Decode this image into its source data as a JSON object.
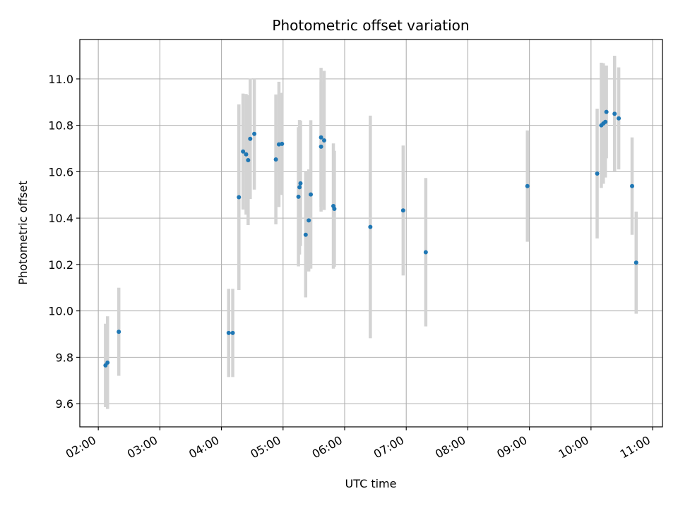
{
  "chart_data": {
    "type": "scatter",
    "title": "Photometric offset variation",
    "xlabel": "UTC time",
    "ylabel": "Photometric offset",
    "xlim": [
      1.7,
      11.16
    ],
    "ylim": [
      9.5,
      11.17
    ],
    "grid": true,
    "xticks": [
      {
        "value": 2,
        "label": "02:00"
      },
      {
        "value": 3,
        "label": "03:00"
      },
      {
        "value": 4,
        "label": "04:00"
      },
      {
        "value": 5,
        "label": "05:00"
      },
      {
        "value": 6,
        "label": "06:00"
      },
      {
        "value": 7,
        "label": "07:00"
      },
      {
        "value": 8,
        "label": "08:00"
      },
      {
        "value": 9,
        "label": "09:00"
      },
      {
        "value": 10,
        "label": "10:00"
      },
      {
        "value": 11,
        "label": "11:00"
      }
    ],
    "yticks": [
      {
        "value": 9.6,
        "label": "9.6"
      },
      {
        "value": 9.8,
        "label": "9.8"
      },
      {
        "value": 10.0,
        "label": "10.0"
      },
      {
        "value": 10.2,
        "label": "10.2"
      },
      {
        "value": 10.4,
        "label": "10.4"
      },
      {
        "value": 10.6,
        "label": "10.6"
      },
      {
        "value": 10.8,
        "label": "10.8"
      },
      {
        "value": 11.0,
        "label": "11.0"
      }
    ],
    "colors": {
      "marker": "#1f77b4",
      "errorbar": "#d3d3d3",
      "grid": "#b0b0b0"
    },
    "points": [
      {
        "x": 2.117,
        "y": 9.765,
        "err": 0.18
      },
      {
        "x": 2.15,
        "y": 9.777,
        "err": 0.2
      },
      {
        "x": 2.333,
        "y": 9.91,
        "err": 0.19
      },
      {
        "x": 4.117,
        "y": 9.905,
        "err": 0.19
      },
      {
        "x": 4.183,
        "y": 9.905,
        "err": 0.19
      },
      {
        "x": 4.283,
        "y": 10.49,
        "err": 0.4
      },
      {
        "x": 4.35,
        "y": 10.687,
        "err": 0.25
      },
      {
        "x": 4.4,
        "y": 10.675,
        "err": 0.26
      },
      {
        "x": 4.433,
        "y": 10.65,
        "err": 0.28
      },
      {
        "x": 4.467,
        "y": 10.742,
        "err": 0.26
      },
      {
        "x": 4.533,
        "y": 10.763,
        "err": 0.24
      },
      {
        "x": 4.883,
        "y": 10.653,
        "err": 0.28
      },
      {
        "x": 4.933,
        "y": 10.718,
        "err": 0.27
      },
      {
        "x": 4.983,
        "y": 10.72,
        "err": 0.22
      },
      {
        "x": 5.25,
        "y": 10.492,
        "err": 0.3
      },
      {
        "x": 5.267,
        "y": 10.533,
        "err": 0.29
      },
      {
        "x": 5.283,
        "y": 10.55,
        "err": 0.27
      },
      {
        "x": 5.367,
        "y": 10.328,
        "err": 0.27
      },
      {
        "x": 5.417,
        "y": 10.39,
        "err": 0.22
      },
      {
        "x": 5.45,
        "y": 10.502,
        "err": 0.32
      },
      {
        "x": 5.617,
        "y": 10.708,
        "err": 0.28
      },
      {
        "x": 5.617,
        "y": 10.748,
        "err": 0.3
      },
      {
        "x": 5.667,
        "y": 10.735,
        "err": 0.3
      },
      {
        "x": 5.817,
        "y": 10.452,
        "err": 0.27
      },
      {
        "x": 5.833,
        "y": 10.44,
        "err": 0.25
      },
      {
        "x": 6.417,
        "y": 10.362,
        "err": 0.48
      },
      {
        "x": 6.95,
        "y": 10.433,
        "err": 0.28
      },
      {
        "x": 7.317,
        "y": 10.253,
        "err": 0.32
      },
      {
        "x": 8.967,
        "y": 10.538,
        "err": 0.24
      },
      {
        "x": 10.1,
        "y": 10.592,
        "err": 0.28
      },
      {
        "x": 10.167,
        "y": 10.8,
        "err": 0.27
      },
      {
        "x": 10.2,
        "y": 10.808,
        "err": 0.26
      },
      {
        "x": 10.233,
        "y": 10.815,
        "err": 0.24
      },
      {
        "x": 10.25,
        "y": 10.858,
        "err": 0.2
      },
      {
        "x": 10.383,
        "y": 10.85,
        "err": 0.25
      },
      {
        "x": 10.45,
        "y": 10.83,
        "err": 0.22
      },
      {
        "x": 10.667,
        "y": 10.538,
        "err": 0.21
      },
      {
        "x": 10.733,
        "y": 10.208,
        "err": 0.22
      }
    ]
  }
}
